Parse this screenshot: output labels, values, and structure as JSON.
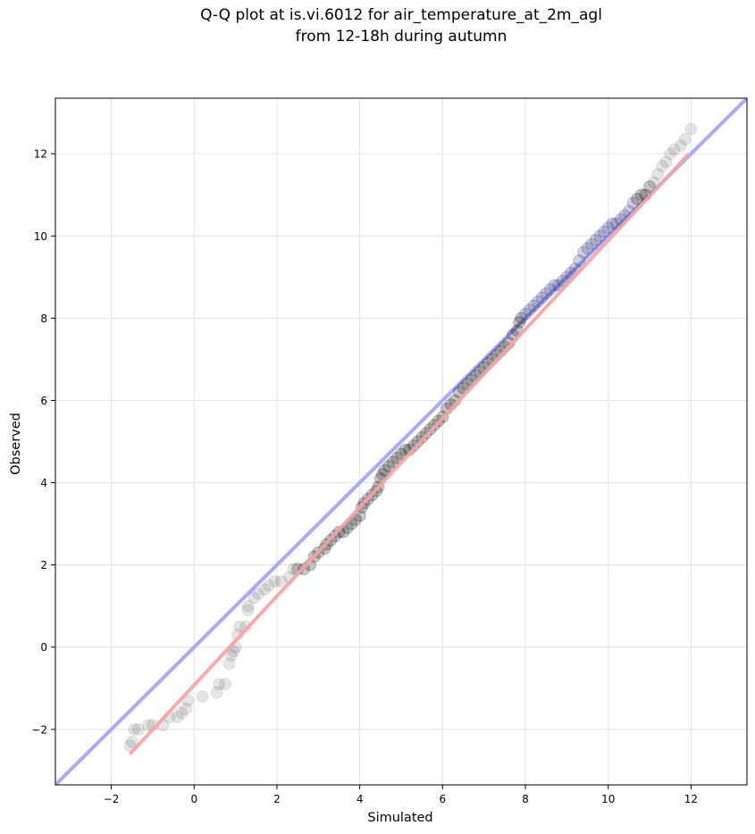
{
  "chart_data": {
    "type": "scatter",
    "title": "Q-Q plot at is.vi.6012 for air_temperature_at_2m_agl",
    "subtitle": "from 12-18h during autumn",
    "xlabel": "Simulated",
    "ylabel": "Observed",
    "xlim": [
      -3.35,
      13.35
    ],
    "ylim": [
      -3.35,
      13.35
    ],
    "xticks": [
      -2,
      0,
      2,
      4,
      6,
      8,
      10,
      12
    ],
    "yticks": [
      -2,
      0,
      2,
      4,
      6,
      8,
      10,
      12
    ],
    "tick_labels": [
      "−2",
      "0",
      "2",
      "4",
      "6",
      "8",
      "10",
      "12"
    ],
    "grid": true,
    "colors": {
      "identity_line": "#aaaaf5",
      "fit_line": "#f5a3a3",
      "points": "#000000",
      "dense_points_tint": "#2a2a7a"
    },
    "identity_line": {
      "x": [
        -3.35,
        13.35
      ],
      "y": [
        -3.35,
        13.35
      ]
    },
    "fit_line": {
      "x": [
        -1.55,
        11.95
      ],
      "y": [
        -2.6,
        12.0
      ]
    },
    "points": [
      [
        -1.55,
        -2.4
      ],
      [
        -1.5,
        -2.3
      ],
      [
        -1.45,
        -2.0
      ],
      [
        -1.35,
        -2.0
      ],
      [
        -1.1,
        -1.9
      ],
      [
        -1.0,
        -1.9
      ],
      [
        -0.75,
        -1.9
      ],
      [
        -0.6,
        -1.7
      ],
      [
        -0.4,
        -1.7
      ],
      [
        -0.3,
        -1.6
      ],
      [
        -0.2,
        -1.5
      ],
      [
        -0.15,
        -1.3
      ],
      [
        0.2,
        -1.2
      ],
      [
        0.55,
        -1.1
      ],
      [
        0.75,
        -0.9
      ],
      [
        0.6,
        -0.9
      ],
      [
        0.85,
        -0.4
      ],
      [
        0.9,
        -0.2
      ],
      [
        0.95,
        -0.1
      ],
      [
        1.0,
        0.0
      ],
      [
        1.05,
        0.3
      ],
      [
        1.1,
        0.5
      ],
      [
        1.25,
        0.5
      ],
      [
        1.3,
        0.9
      ],
      [
        1.3,
        1.0
      ],
      [
        1.45,
        1.2
      ],
      [
        1.55,
        1.3
      ],
      [
        1.7,
        1.4
      ],
      [
        1.8,
        1.5
      ],
      [
        1.95,
        1.6
      ],
      [
        2.1,
        1.6
      ],
      [
        2.3,
        1.7
      ],
      [
        2.4,
        1.9
      ],
      [
        2.5,
        1.9
      ],
      [
        2.65,
        1.9
      ],
      [
        2.8,
        2.0
      ],
      [
        2.9,
        2.2
      ],
      [
        3.0,
        2.3
      ],
      [
        3.15,
        2.4
      ],
      [
        3.2,
        2.5
      ],
      [
        3.3,
        2.6
      ],
      [
        3.4,
        2.7
      ],
      [
        3.5,
        2.8
      ],
      [
        3.6,
        2.8
      ],
      [
        3.7,
        2.9
      ],
      [
        3.8,
        3.0
      ],
      [
        3.9,
        3.1
      ],
      [
        4.0,
        3.2
      ],
      [
        4.05,
        3.4
      ],
      [
        4.1,
        3.5
      ],
      [
        4.2,
        3.6
      ],
      [
        4.3,
        3.7
      ],
      [
        4.4,
        3.8
      ],
      [
        4.45,
        3.9
      ],
      [
        4.5,
        4.1
      ],
      [
        4.55,
        4.2
      ],
      [
        4.6,
        4.3
      ],
      [
        4.7,
        4.4
      ],
      [
        4.8,
        4.5
      ],
      [
        4.9,
        4.6
      ],
      [
        5.0,
        4.7
      ],
      [
        5.1,
        4.8
      ],
      [
        5.2,
        4.8
      ],
      [
        5.3,
        4.9
      ],
      [
        5.4,
        5.0
      ],
      [
        5.5,
        5.1
      ],
      [
        5.6,
        5.2
      ],
      [
        5.7,
        5.3
      ],
      [
        5.8,
        5.4
      ],
      [
        5.9,
        5.5
      ],
      [
        6.0,
        5.6
      ],
      [
        6.1,
        5.8
      ],
      [
        6.2,
        5.9
      ],
      [
        6.3,
        6.0
      ],
      [
        6.4,
        6.2
      ],
      [
        6.5,
        6.3
      ],
      [
        6.6,
        6.4
      ],
      [
        6.7,
        6.5
      ],
      [
        6.8,
        6.6
      ],
      [
        6.9,
        6.7
      ],
      [
        7.0,
        6.8
      ],
      [
        7.1,
        6.9
      ],
      [
        7.2,
        7.0
      ],
      [
        7.3,
        7.1
      ],
      [
        7.4,
        7.2
      ],
      [
        7.5,
        7.3
      ],
      [
        7.6,
        7.4
      ],
      [
        7.7,
        7.6
      ],
      [
        7.8,
        7.7
      ],
      [
        7.85,
        7.9
      ],
      [
        7.9,
        8.0
      ],
      [
        8.0,
        8.1
      ],
      [
        8.1,
        8.2
      ],
      [
        8.2,
        8.3
      ],
      [
        8.3,
        8.4
      ],
      [
        8.4,
        8.5
      ],
      [
        8.5,
        8.6
      ],
      [
        8.6,
        8.7
      ],
      [
        8.7,
        8.8
      ],
      [
        8.8,
        8.8
      ],
      [
        8.9,
        8.9
      ],
      [
        9.0,
        9.0
      ],
      [
        9.1,
        9.1
      ],
      [
        9.2,
        9.2
      ],
      [
        9.3,
        9.4
      ],
      [
        9.4,
        9.6
      ],
      [
        9.5,
        9.7
      ],
      [
        9.6,
        9.8
      ],
      [
        9.7,
        9.9
      ],
      [
        9.8,
        10.0
      ],
      [
        9.9,
        10.1
      ],
      [
        10.0,
        10.2
      ],
      [
        10.1,
        10.3
      ],
      [
        10.2,
        10.3
      ],
      [
        10.3,
        10.4
      ],
      [
        10.4,
        10.5
      ],
      [
        10.5,
        10.6
      ],
      [
        10.6,
        10.8
      ],
      [
        10.7,
        10.9
      ],
      [
        10.8,
        11.0
      ],
      [
        10.9,
        11.0
      ],
      [
        11.0,
        11.2
      ],
      [
        11.1,
        11.3
      ],
      [
        11.2,
        11.5
      ],
      [
        11.3,
        11.7
      ],
      [
        11.4,
        11.8
      ],
      [
        11.5,
        12.0
      ],
      [
        11.6,
        12.1
      ],
      [
        11.75,
        12.2
      ],
      [
        11.85,
        12.35
      ],
      [
        12.0,
        12.6
      ]
    ]
  }
}
